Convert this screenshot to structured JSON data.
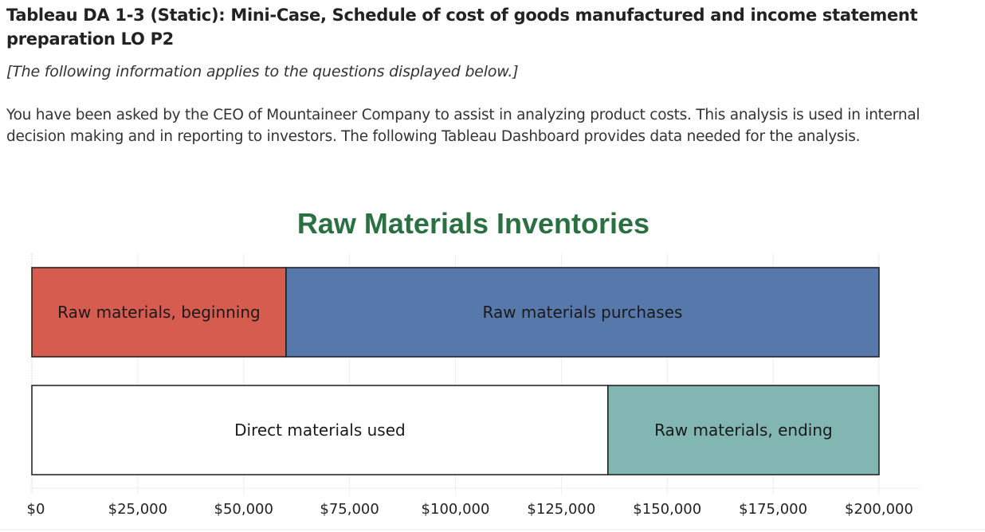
{
  "question": {
    "title": "Tableau DA 1-3 (Static): Mini-Case, Schedule of cost of goods manufactured and income statement preparation LO P2",
    "note": "[The following information applies to the questions displayed below.]",
    "intro": "You have been asked by the CEO of Mountaineer Company to assist in analyzing product costs. This analysis is used in internal decision making and in reporting to investors. The following Tableau Dashboard provides data needed for the analysis."
  },
  "chart_data": {
    "type": "bar",
    "orientation": "horizontal-stacked",
    "title": "Raw Materials Inventories",
    "xlabel": "",
    "ylabel": "",
    "xlim": [
      0,
      200000
    ],
    "grid": true,
    "legend": "none",
    "x_ticks": [
      0,
      25000,
      50000,
      75000,
      100000,
      125000,
      150000,
      175000,
      200000
    ],
    "x_tick_labels": [
      "$0",
      "$25,000",
      "$50,000",
      "$75,000",
      "$100,000",
      "$125,000",
      "$150,000",
      "$175,000",
      "$200,000"
    ],
    "rows": [
      {
        "segments": [
          {
            "label": "Raw materials, beginning",
            "value": 60000,
            "color": "#d65c50"
          },
          {
            "label": "Raw materials purchases",
            "value": 140000,
            "color": "#5778aa"
          }
        ]
      },
      {
        "segments": [
          {
            "label": "Direct materials used",
            "value": 136000,
            "color": "#ffffff"
          },
          {
            "label": "Raw materials, ending",
            "value": 64000,
            "color": "#81b6b2"
          }
        ]
      }
    ]
  }
}
